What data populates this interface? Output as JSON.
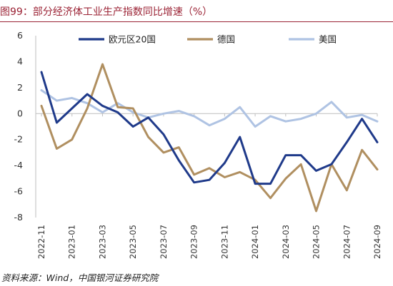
{
  "title": "图99：部分经济体工业生产指数同比增速（%）",
  "source": "资料来源：Wind，中国银河证券研究院",
  "chart_data": {
    "type": "line",
    "title": "图99：部分经济体工业生产指数同比增速（%）",
    "xlabel": "",
    "ylabel": "",
    "ylim": [
      -8,
      6
    ],
    "yticks": [
      "6",
      "4",
      "2",
      "0",
      "-2",
      "-4",
      "-6",
      "-8"
    ],
    "ytick_values": [
      6,
      4,
      2,
      0,
      -2,
      -4,
      -6,
      -8
    ],
    "x": [
      "2022-11",
      "2022-12",
      "2023-01",
      "2023-02",
      "2023-03",
      "2023-04",
      "2023-05",
      "2023-06",
      "2023-07",
      "2023-08",
      "2023-09",
      "2023-10",
      "2023-11",
      "2023-12",
      "2024-01",
      "2024-02",
      "2024-03",
      "2024-04",
      "2024-05",
      "2024-06",
      "2024-07",
      "2024-08",
      "2024-09"
    ],
    "xtick_labels": [
      "2022-11",
      "2023-01",
      "2023-03",
      "2023-05",
      "2023-07",
      "2023-09",
      "2023-11",
      "2024-01",
      "2024-03",
      "2024-05",
      "2024-07",
      "2024-09"
    ],
    "grid": false,
    "legend_position": "top",
    "series": [
      {
        "name": "欧元区20国",
        "color": "#1F3A8A",
        "values": [
          3.2,
          -0.7,
          0.4,
          1.5,
          0.6,
          0.1,
          -1.0,
          -0.3,
          -1.6,
          -3.6,
          -5.3,
          -5.1,
          -3.8,
          -1.8,
          -5.4,
          -5.4,
          -3.2,
          -3.2,
          -4.4,
          -3.9,
          -2.2,
          -0.4,
          -2.2
        ]
      },
      {
        "name": "德国",
        "color": "#B08F60",
        "values": [
          0.6,
          -2.7,
          -2.0,
          0.4,
          3.8,
          0.5,
          0.4,
          -1.8,
          -3.0,
          -2.6,
          -4.7,
          -4.2,
          -4.9,
          -4.5,
          -5.1,
          -6.5,
          -5.0,
          -3.9,
          -7.5,
          -3.9,
          -5.9,
          -2.8,
          -4.3
        ]
      },
      {
        "name": "美国",
        "color": "#AFC3E3",
        "values": [
          1.8,
          1.0,
          1.2,
          0.8,
          0.1,
          0.8,
          0.1,
          -0.3,
          0.0,
          0.2,
          -0.2,
          -0.9,
          -0.4,
          0.5,
          -1.0,
          -0.2,
          -0.6,
          -0.4,
          0.0,
          0.9,
          -0.3,
          -0.1,
          -0.6
        ]
      }
    ]
  }
}
